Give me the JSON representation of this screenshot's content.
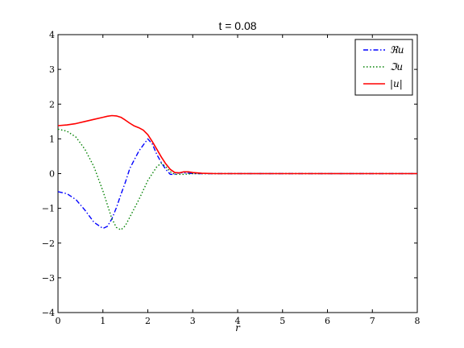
{
  "chart_data": {
    "type": "line",
    "title": "t = 0.08",
    "xlabel": "r",
    "ylabel": "",
    "xlim": [
      0,
      8
    ],
    "ylim": [
      -4,
      4
    ],
    "xticks": [
      0,
      1,
      2,
      3,
      4,
      5,
      6,
      7,
      8
    ],
    "yticks": [
      -4,
      -3,
      -2,
      -1,
      0,
      1,
      2,
      3,
      4
    ],
    "grid": false,
    "legend_position": "top-right",
    "series": [
      {
        "name": "ℜu",
        "color": "#0000ff",
        "style": "dashdot",
        "x": [
          0,
          0.2,
          0.4,
          0.6,
          0.8,
          1.0,
          1.1,
          1.2,
          1.3,
          1.4,
          1.5,
          1.6,
          1.8,
          2.0,
          2.1,
          2.2,
          2.3,
          2.4,
          2.5,
          2.6,
          2.7,
          2.8,
          3.0,
          3.2,
          3.5,
          4,
          5,
          6,
          7,
          8
        ],
        "y": [
          -0.52,
          -0.58,
          -0.75,
          -1.05,
          -1.4,
          -1.58,
          -1.52,
          -1.3,
          -0.98,
          -0.6,
          -0.25,
          0.15,
          0.65,
          1.0,
          0.85,
          0.55,
          0.32,
          0.12,
          -0.02,
          -0.02,
          0.02,
          0.02,
          0.0,
          0.0,
          0.0,
          0.0,
          0.0,
          0.0,
          0.0,
          0.0
        ]
      },
      {
        "name": "ℑu",
        "color": "#008000",
        "style": "dotted",
        "x": [
          0,
          0.2,
          0.4,
          0.6,
          0.8,
          1.0,
          1.2,
          1.3,
          1.4,
          1.5,
          1.6,
          1.8,
          2.0,
          2.2,
          2.3,
          2.4,
          2.5,
          2.6,
          2.8,
          3.0,
          3.2,
          3.5,
          4,
          5,
          6,
          7,
          8
        ],
        "y": [
          1.28,
          1.22,
          1.05,
          0.7,
          0.2,
          -0.5,
          -1.3,
          -1.55,
          -1.62,
          -1.5,
          -1.25,
          -0.75,
          -0.2,
          0.2,
          0.3,
          0.2,
          0.05,
          -0.02,
          -0.02,
          0.0,
          0.0,
          0.0,
          0.0,
          0.0,
          0.0,
          0.0,
          0.0
        ]
      },
      {
        "name": "|u|",
        "color": "#ff0000",
        "style": "solid",
        "x": [
          0,
          0.2,
          0.4,
          0.6,
          0.8,
          1.0,
          1.1,
          1.2,
          1.3,
          1.4,
          1.5,
          1.6,
          1.7,
          1.8,
          1.9,
          2.0,
          2.1,
          2.2,
          2.3,
          2.4,
          2.5,
          2.6,
          2.7,
          2.8,
          2.9,
          3.0,
          3.2,
          3.5,
          4,
          5,
          6,
          7,
          8
        ],
        "y": [
          1.38,
          1.4,
          1.44,
          1.5,
          1.56,
          1.62,
          1.65,
          1.67,
          1.66,
          1.62,
          1.54,
          1.45,
          1.37,
          1.32,
          1.25,
          1.12,
          0.92,
          0.7,
          0.48,
          0.28,
          0.12,
          0.03,
          0.02,
          0.05,
          0.05,
          0.03,
          0.01,
          0.0,
          0.0,
          0.0,
          0.0,
          0.0,
          0.0
        ]
      }
    ]
  }
}
